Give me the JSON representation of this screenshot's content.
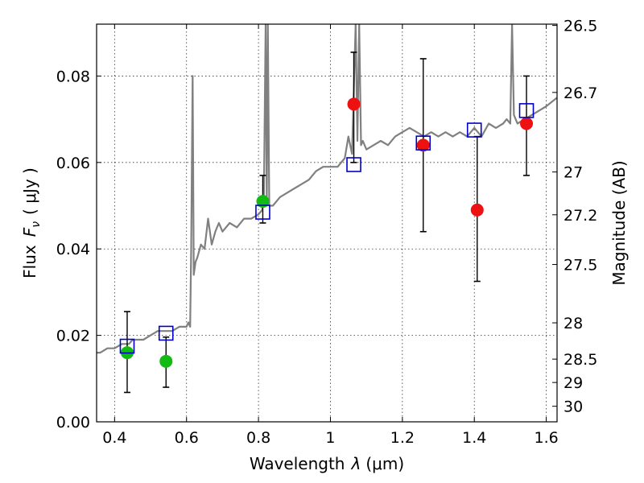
{
  "chart_data": {
    "type": "scatter",
    "xlabel": "Wavelength",
    "xlabel_symbol": "λ",
    "xlabel_unit": "(μm)",
    "ylabel": "Flux",
    "ylabel_symbol": "F",
    "ylabel_subscript": "ν",
    "ylabel_unit": "( μJy )",
    "y2label": "Magnitude (AB)",
    "xlim": [
      0.35,
      1.63
    ],
    "ylim": [
      0.0,
      0.092
    ],
    "grid": true,
    "x_ticks": [
      0.4,
      0.6,
      0.8,
      1.0,
      1.2,
      1.4,
      1.6
    ],
    "x_tick_labels": [
      "0.4",
      "0.6",
      "0.8",
      "1",
      "1.2",
      "1.4",
      "1.6"
    ],
    "y_ticks": [
      0.0,
      0.02,
      0.04,
      0.06,
      0.08
    ],
    "y_tick_labels": [
      "0.00",
      "0.02",
      "0.04",
      "0.06",
      "0.08"
    ],
    "y2_ticks": [
      {
        "flux": 0.0917,
        "label": "26.5"
      },
      {
        "flux": 0.0762,
        "label": "26.7"
      },
      {
        "flux": 0.0578,
        "label": "27"
      },
      {
        "flux": 0.0479,
        "label": "27.2"
      },
      {
        "flux": 0.0364,
        "label": "27.5"
      },
      {
        "flux": 0.0229,
        "label": "28"
      },
      {
        "flux": 0.0145,
        "label": "28.5"
      },
      {
        "flux": 0.0091,
        "label": "29"
      },
      {
        "flux": 0.0036,
        "label": "30"
      }
    ],
    "colors": {
      "model": "#808080",
      "green_points": "#11bb11",
      "red_points": "#ee1111",
      "model_boxes": "#0000cc",
      "errorbar": "#000000"
    },
    "series": [
      {
        "type": "line",
        "x": [
          0.35,
          0.36,
          0.38,
          0.4,
          0.42,
          0.44,
          0.45,
          0.46,
          0.48,
          0.5,
          0.52,
          0.54,
          0.56,
          0.58,
          0.6,
          0.605,
          0.61,
          0.613,
          0.617,
          0.62,
          0.625,
          0.63,
          0.64,
          0.65,
          0.66,
          0.67,
          0.68,
          0.69,
          0.7,
          0.72,
          0.74,
          0.76,
          0.78,
          0.8,
          0.81,
          0.815,
          0.82,
          0.823,
          0.826,
          0.83,
          0.84,
          0.86,
          0.88,
          0.9,
          0.92,
          0.94,
          0.96,
          0.98,
          1.0,
          1.02,
          1.04,
          1.05,
          1.06,
          1.07,
          1.075,
          1.08,
          1.085,
          1.09,
          1.1,
          1.12,
          1.14,
          1.16,
          1.18,
          1.2,
          1.22,
          1.24,
          1.26,
          1.28,
          1.3,
          1.32,
          1.34,
          1.36,
          1.38,
          1.4,
          1.42,
          1.44,
          1.46,
          1.48,
          1.49,
          1.5,
          1.505,
          1.51,
          1.52,
          1.54,
          1.56,
          1.58,
          1.6,
          1.63
        ],
        "y": [
          0.016,
          0.016,
          0.017,
          0.017,
          0.018,
          0.018,
          0.019,
          0.019,
          0.019,
          0.02,
          0.021,
          0.021,
          0.021,
          0.022,
          0.022,
          0.023,
          0.022,
          0.04,
          0.08,
          0.034,
          0.037,
          0.038,
          0.041,
          0.04,
          0.047,
          0.041,
          0.044,
          0.046,
          0.044,
          0.046,
          0.045,
          0.047,
          0.047,
          0.048,
          0.049,
          0.052,
          0.092,
          0.05,
          0.092,
          0.05,
          0.05,
          0.052,
          0.053,
          0.054,
          0.055,
          0.056,
          0.058,
          0.059,
          0.059,
          0.059,
          0.061,
          0.066,
          0.062,
          0.092,
          0.065,
          0.092,
          0.064,
          0.065,
          0.063,
          0.064,
          0.065,
          0.064,
          0.066,
          0.067,
          0.068,
          0.067,
          0.066,
          0.067,
          0.066,
          0.067,
          0.066,
          0.067,
          0.066,
          0.068,
          0.066,
          0.069,
          0.068,
          0.069,
          0.07,
          0.069,
          0.092,
          0.071,
          0.069,
          0.07,
          0.071,
          0.072,
          0.073,
          0.075
        ]
      },
      {
        "type": "scatter",
        "marker": "circle",
        "color_key": "green_points",
        "x": [
          0.435,
          0.543,
          0.812
        ],
        "y": [
          0.016,
          0.014,
          0.051
        ],
        "yerr_low": [
          0.0068,
          0.008,
          0.046
        ],
        "yerr_high": [
          0.0255,
          0.0196,
          0.057
        ]
      },
      {
        "type": "scatter",
        "marker": "circle",
        "color_key": "red_points",
        "x": [
          1.065,
          1.258,
          1.408,
          1.545
        ],
        "y": [
          0.0735,
          0.064,
          0.049,
          0.069
        ],
        "yerr_low": [
          0.06,
          0.044,
          0.0325,
          0.057
        ],
        "yerr_high": [
          0.0855,
          0.084,
          0.066,
          0.08
        ]
      },
      {
        "type": "scatter",
        "marker": "square-open",
        "color_key": "model_boxes",
        "x": [
          0.435,
          0.543,
          0.812,
          1.065,
          1.258,
          1.4,
          1.545
        ],
        "y": [
          0.0175,
          0.0205,
          0.0485,
          0.0595,
          0.0645,
          0.0675,
          0.072
        ]
      }
    ]
  }
}
